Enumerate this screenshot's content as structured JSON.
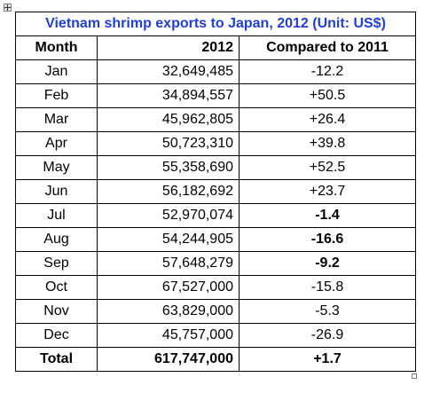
{
  "table": {
    "title": "Vietnam shrimp exports to Japan, 2012 (Unit: US$)",
    "headers": {
      "month": "Month",
      "year": "2012",
      "compare": "Compared to 2011"
    },
    "rows": [
      {
        "month": "Jan",
        "value": "32,649,485",
        "change": "-12.2",
        "bold_change": false
      },
      {
        "month": "Feb",
        "value": "34,894,557",
        "change": "+50.5",
        "bold_change": false
      },
      {
        "month": "Mar",
        "value": "45,962,805",
        "change": "+26.4",
        "bold_change": false
      },
      {
        "month": "Apr",
        "value": "50,723,310",
        "change": "+39.8",
        "bold_change": false
      },
      {
        "month": "May",
        "value": "55,358,690",
        "change": "+52.5",
        "bold_change": false
      },
      {
        "month": "Jun",
        "value": "56,182,692",
        "change": "+23.7",
        "bold_change": false
      },
      {
        "month": "Jul",
        "value": "52,970,074",
        "change": "-1.4",
        "bold_change": true
      },
      {
        "month": "Aug",
        "value": "54,244,905",
        "change": "-16.6",
        "bold_change": true
      },
      {
        "month": "Sep",
        "value": "57,648,279",
        "change": "-9.2",
        "bold_change": true
      },
      {
        "month": "Oct",
        "value": "67,527,000",
        "change": "-15.8",
        "bold_change": false
      },
      {
        "month": "Nov",
        "value": "63,829,000",
        "change": "-5.3",
        "bold_change": false
      },
      {
        "month": "Dec",
        "value": "45,757,000",
        "change": "-26.9",
        "bold_change": false
      }
    ],
    "total": {
      "label": "Total",
      "value": "617,747,000",
      "change": "+1.7"
    }
  },
  "colors": {
    "title": "#1f3fd6",
    "border": "#000000",
    "text": "#000000"
  },
  "icons": {
    "move_handle": "table-move-handle-icon",
    "resize_handle": "table-resize-handle-icon"
  }
}
